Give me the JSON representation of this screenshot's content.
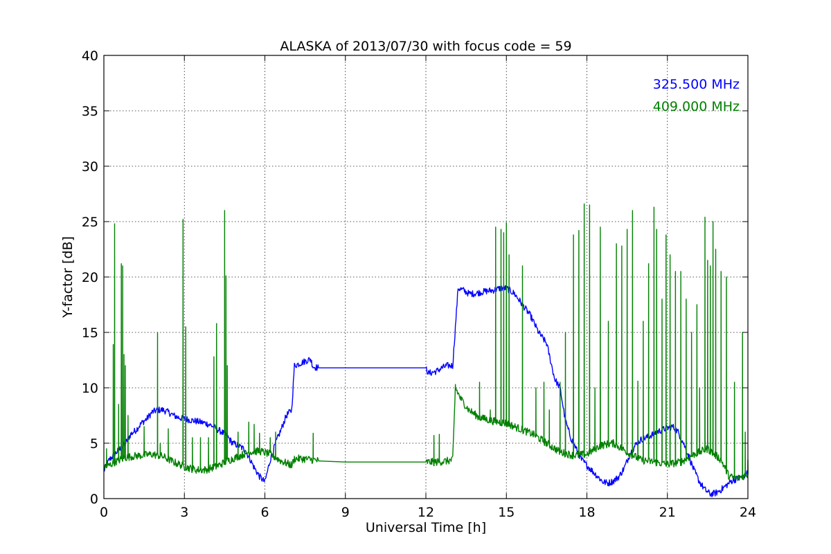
{
  "chart_data": {
    "type": "line",
    "title": "ALASKA of 2013/07/30 with focus code = 59",
    "xlabel": "Universal Time [h]",
    "ylabel": "Y-factor [dB]",
    "xlim": [
      0,
      24
    ],
    "ylim": [
      0,
      40
    ],
    "xticks": [
      "0",
      "3",
      "6",
      "9",
      "12",
      "15",
      "18",
      "21",
      "24"
    ],
    "yticks": [
      "0",
      "5",
      "10",
      "15",
      "20",
      "25",
      "30",
      "35",
      "40"
    ],
    "grid": true,
    "legend_position": "top-right",
    "series": [
      {
        "name": "325.500 MHz",
        "color": "#0000ff",
        "points": [
          [
            0.0,
            2.5
          ],
          [
            0.2,
            3.5
          ],
          [
            0.4,
            4.0
          ],
          [
            0.6,
            4.5
          ],
          [
            0.8,
            5.0
          ],
          [
            1.0,
            5.8
          ],
          [
            1.2,
            6.2
          ],
          [
            1.4,
            6.8
          ],
          [
            1.6,
            7.2
          ],
          [
            1.8,
            7.8
          ],
          [
            2.0,
            8.0
          ],
          [
            2.2,
            8.0
          ],
          [
            2.4,
            7.8
          ],
          [
            2.6,
            7.5
          ],
          [
            2.8,
            7.3
          ],
          [
            3.0,
            7.2
          ],
          [
            3.2,
            7.1
          ],
          [
            3.4,
            7.0
          ],
          [
            3.6,
            6.9
          ],
          [
            3.8,
            6.8
          ],
          [
            4.0,
            6.6
          ],
          [
            4.2,
            6.3
          ],
          [
            4.4,
            6.0
          ],
          [
            4.6,
            5.6
          ],
          [
            4.8,
            5.0
          ],
          [
            5.0,
            4.8
          ],
          [
            5.2,
            4.5
          ],
          [
            5.4,
            3.8
          ],
          [
            5.6,
            2.8
          ],
          [
            5.8,
            2.0
          ],
          [
            6.0,
            1.5
          ],
          [
            6.2,
            3.5
          ],
          [
            6.4,
            5.0
          ],
          [
            6.6,
            6.2
          ],
          [
            6.8,
            7.5
          ],
          [
            7.0,
            8.0
          ],
          [
            7.1,
            12.0
          ],
          [
            7.4,
            12.3
          ],
          [
            7.7,
            12.6
          ],
          [
            7.8,
            11.9
          ],
          [
            8.0,
            11.8
          ],
          [
            9.0,
            11.8
          ],
          [
            10.0,
            11.8
          ],
          [
            11.0,
            11.8
          ],
          [
            12.0,
            11.8
          ],
          [
            12.1,
            11.3
          ],
          [
            12.4,
            11.5
          ],
          [
            12.6,
            11.8
          ],
          [
            12.8,
            12.0
          ],
          [
            13.0,
            12.0
          ],
          [
            13.2,
            19.0
          ],
          [
            13.4,
            18.8
          ],
          [
            13.6,
            18.5
          ],
          [
            13.8,
            18.5
          ],
          [
            14.0,
            18.6
          ],
          [
            14.2,
            18.7
          ],
          [
            14.5,
            18.8
          ],
          [
            14.8,
            19.0
          ],
          [
            15.0,
            19.0
          ],
          [
            15.3,
            18.5
          ],
          [
            15.6,
            17.5
          ],
          [
            15.9,
            16.5
          ],
          [
            16.2,
            15.0
          ],
          [
            16.5,
            14.0
          ],
          [
            16.8,
            10.8
          ],
          [
            17.0,
            10.0
          ],
          [
            17.2,
            7.0
          ],
          [
            17.4,
            5.5
          ],
          [
            17.6,
            4.5
          ],
          [
            17.8,
            3.5
          ],
          [
            18.0,
            3.0
          ],
          [
            18.2,
            2.5
          ],
          [
            18.4,
            2.0
          ],
          [
            18.6,
            1.5
          ],
          [
            18.8,
            1.4
          ],
          [
            19.0,
            1.6
          ],
          [
            19.2,
            2.0
          ],
          [
            19.4,
            2.8
          ],
          [
            19.6,
            4.0
          ],
          [
            19.8,
            4.8
          ],
          [
            20.0,
            5.3
          ],
          [
            20.3,
            5.6
          ],
          [
            20.6,
            6.0
          ],
          [
            20.9,
            6.3
          ],
          [
            21.2,
            6.5
          ],
          [
            21.4,
            6.0
          ],
          [
            21.6,
            5.0
          ],
          [
            21.8,
            3.8
          ],
          [
            22.0,
            2.5
          ],
          [
            22.2,
            1.5
          ],
          [
            22.4,
            0.8
          ],
          [
            22.6,
            0.4
          ],
          [
            22.8,
            0.5
          ],
          [
            23.0,
            0.8
          ],
          [
            23.2,
            1.2
          ],
          [
            23.4,
            1.6
          ],
          [
            23.6,
            1.8
          ],
          [
            23.8,
            2.0
          ],
          [
            24.0,
            2.3
          ]
        ]
      },
      {
        "name": "409.000 MHz",
        "color": "#008000",
        "points": [
          [
            0.0,
            2.8
          ],
          [
            0.2,
            3.0
          ],
          [
            0.4,
            3.3
          ],
          [
            0.6,
            3.5
          ],
          [
            0.8,
            3.7
          ],
          [
            1.0,
            3.8
          ],
          [
            1.4,
            3.9
          ],
          [
            1.8,
            4.0
          ],
          [
            2.2,
            3.8
          ],
          [
            2.6,
            3.3
          ],
          [
            3.0,
            2.9
          ],
          [
            3.4,
            2.6
          ],
          [
            3.8,
            2.6
          ],
          [
            4.2,
            2.9
          ],
          [
            4.6,
            3.4
          ],
          [
            5.0,
            3.8
          ],
          [
            5.4,
            4.2
          ],
          [
            5.8,
            4.3
          ],
          [
            6.2,
            4.0
          ],
          [
            6.6,
            3.4
          ],
          [
            7.0,
            3.0
          ],
          [
            7.1,
            3.6
          ],
          [
            7.4,
            3.6
          ],
          [
            7.8,
            3.5
          ],
          [
            8.0,
            3.4
          ],
          [
            9.0,
            3.3
          ],
          [
            10.0,
            3.3
          ],
          [
            11.0,
            3.3
          ],
          [
            12.0,
            3.3
          ],
          [
            12.4,
            3.3
          ],
          [
            12.8,
            3.4
          ],
          [
            13.0,
            3.5
          ],
          [
            13.1,
            10.0
          ],
          [
            13.3,
            9.0
          ],
          [
            13.6,
            8.0
          ],
          [
            14.0,
            7.3
          ],
          [
            14.5,
            7.0
          ],
          [
            15.0,
            6.8
          ],
          [
            15.5,
            6.3
          ],
          [
            16.0,
            5.8
          ],
          [
            16.5,
            5.0
          ],
          [
            17.0,
            4.2
          ],
          [
            17.5,
            3.9
          ],
          [
            18.0,
            4.0
          ],
          [
            18.5,
            4.8
          ],
          [
            19.0,
            5.0
          ],
          [
            19.5,
            4.2
          ],
          [
            20.0,
            3.5
          ],
          [
            20.5,
            3.3
          ],
          [
            21.0,
            3.1
          ],
          [
            21.5,
            3.3
          ],
          [
            22.0,
            4.0
          ],
          [
            22.5,
            4.5
          ],
          [
            23.0,
            3.5
          ],
          [
            23.3,
            2.0
          ],
          [
            23.6,
            1.8
          ],
          [
            24.0,
            2.2
          ]
        ],
        "spikes": [
          [
            0.1,
            4.5
          ],
          [
            0.35,
            13.9
          ],
          [
            0.4,
            24.8
          ],
          [
            0.55,
            8.5
          ],
          [
            0.65,
            21.2
          ],
          [
            0.7,
            21.0
          ],
          [
            0.75,
            13.0
          ],
          [
            0.8,
            12.0
          ],
          [
            0.9,
            7.5
          ],
          [
            1.5,
            6.5
          ],
          [
            2.0,
            15.0
          ],
          [
            2.1,
            5.0
          ],
          [
            2.4,
            6.3
          ],
          [
            2.95,
            25.2
          ],
          [
            3.05,
            15.5
          ],
          [
            3.3,
            5.5
          ],
          [
            3.6,
            5.5
          ],
          [
            3.9,
            5.5
          ],
          [
            4.1,
            12.8
          ],
          [
            4.2,
            15.8
          ],
          [
            4.5,
            26.0
          ],
          [
            4.55,
            20.1
          ],
          [
            4.6,
            12.0
          ],
          [
            5.0,
            6.0
          ],
          [
            5.4,
            6.9
          ],
          [
            5.6,
            6.7
          ],
          [
            5.8,
            5.9
          ],
          [
            6.2,
            5.5
          ],
          [
            6.4,
            6.0
          ],
          [
            7.8,
            5.9
          ],
          [
            12.3,
            5.7
          ],
          [
            12.5,
            5.8
          ],
          [
            13.1,
            10.3
          ],
          [
            14.0,
            10.5
          ],
          [
            14.2,
            7.5
          ],
          [
            14.4,
            8.0
          ],
          [
            14.6,
            24.5
          ],
          [
            14.8,
            24.3
          ],
          [
            14.9,
            24.0
          ],
          [
            15.0,
            24.9
          ],
          [
            15.1,
            22.0
          ],
          [
            15.6,
            21.0
          ],
          [
            16.1,
            10.0
          ],
          [
            16.4,
            10.5
          ],
          [
            16.6,
            8.0
          ],
          [
            17.0,
            10.5
          ],
          [
            17.2,
            15.0
          ],
          [
            17.5,
            23.8
          ],
          [
            17.7,
            24.2
          ],
          [
            17.9,
            26.6
          ],
          [
            18.1,
            26.5
          ],
          [
            18.3,
            10.0
          ],
          [
            18.5,
            24.5
          ],
          [
            18.8,
            16.0
          ],
          [
            19.1,
            23.0
          ],
          [
            19.3,
            22.8
          ],
          [
            19.5,
            24.3
          ],
          [
            19.7,
            26.0
          ],
          [
            19.9,
            10.6
          ],
          [
            20.1,
            16.0
          ],
          [
            20.3,
            21.2
          ],
          [
            20.5,
            26.3
          ],
          [
            20.6,
            24.3
          ],
          [
            20.8,
            18.0
          ],
          [
            20.95,
            23.8
          ],
          [
            21.1,
            22.0
          ],
          [
            21.3,
            20.5
          ],
          [
            21.5,
            20.5
          ],
          [
            21.7,
            18.0
          ],
          [
            21.9,
            15.0
          ],
          [
            22.1,
            17.5
          ],
          [
            22.2,
            10.0
          ],
          [
            22.4,
            25.4
          ],
          [
            22.5,
            21.5
          ],
          [
            22.6,
            21.0
          ],
          [
            22.7,
            25.0
          ],
          [
            22.8,
            22.5
          ],
          [
            23.0,
            20.5
          ],
          [
            23.2,
            20.0
          ],
          [
            23.5,
            10.5
          ],
          [
            23.8,
            15.0
          ],
          [
            23.9,
            6.0
          ],
          [
            24.0,
            3.5
          ]
        ]
      }
    ]
  }
}
